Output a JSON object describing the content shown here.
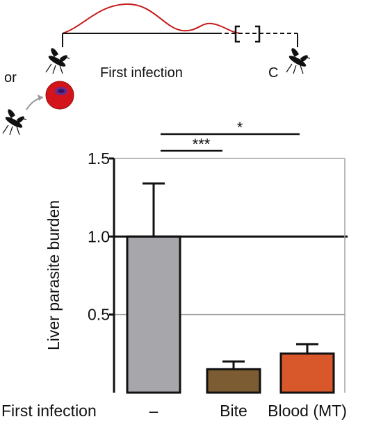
{
  "schematic": {
    "label_or": "or",
    "label_first_infection": "First infection",
    "label_challenge": "C"
  },
  "chart_data": {
    "type": "bar",
    "title": "",
    "xlabel": "First infection",
    "ylabel": "Liver parasite burden",
    "categories": [
      "–",
      "Bite",
      "Blood (MT)"
    ],
    "values": [
      1.0,
      0.15,
      0.25
    ],
    "error_upper": [
      1.34,
      0.2,
      0.31
    ],
    "bar_colors": [
      "#a7a7ab",
      "#7c5d33",
      "#d8582b"
    ],
    "ylim": [
      0.0,
      1.5
    ],
    "yticks": [
      0.5,
      1.0,
      1.5
    ],
    "ytick_labels": [
      "0.5",
      "1.0",
      "1.5"
    ],
    "reference_line": 1.0,
    "grid": "horizontal",
    "significance": [
      {
        "from": "–",
        "to": "Bite",
        "label": "***"
      },
      {
        "from": "–",
        "to": "Blood (MT)",
        "label": "*"
      }
    ]
  }
}
